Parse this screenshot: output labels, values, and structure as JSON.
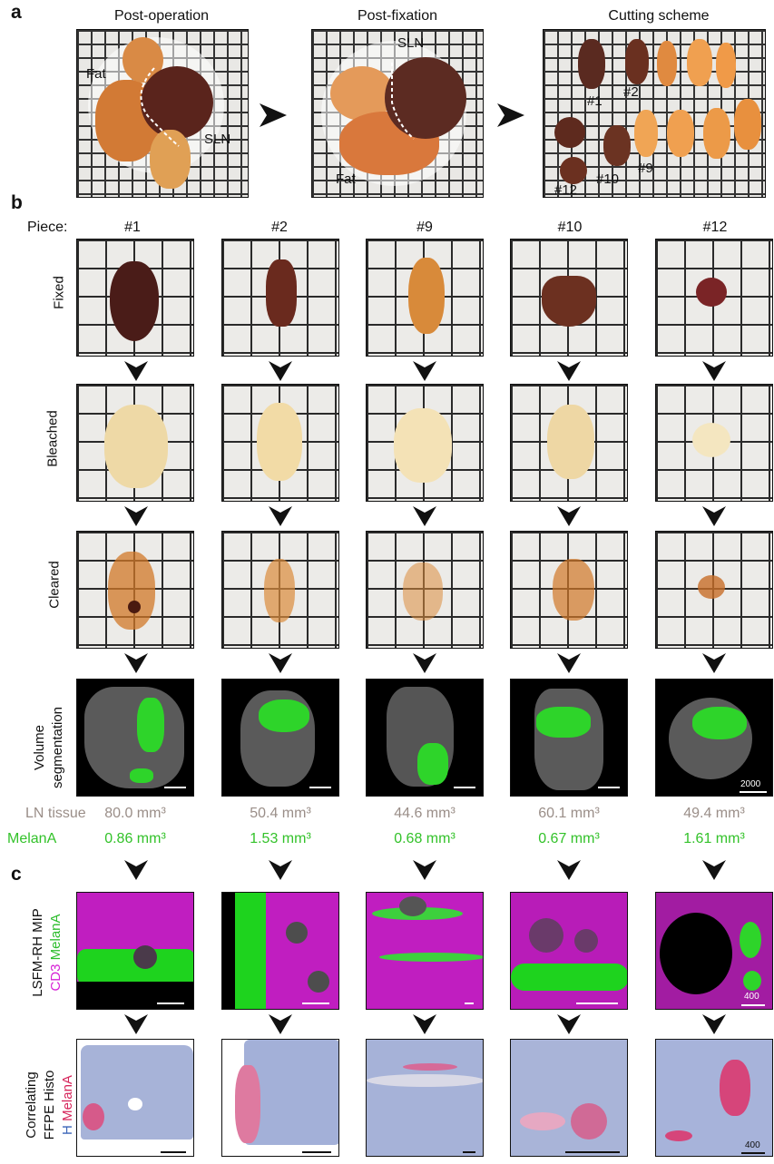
{
  "panels": {
    "a": "a",
    "b": "b",
    "c": "c"
  },
  "panel_a": {
    "titles": [
      "Post-operation",
      "Post-fixation",
      "Cutting scheme"
    ],
    "photo1_labels": {
      "fat": "Fat",
      "sln": "SLN"
    },
    "photo2_labels": {
      "sln": "SLN",
      "fat": "Fat"
    },
    "photo3_labels": [
      "#1",
      "#2",
      "#9",
      "#10",
      "#12"
    ]
  },
  "panel_b": {
    "piece_prefix": "Piece:",
    "pieces": [
      "#1",
      "#2",
      "#9",
      "#10",
      "#12"
    ],
    "row_labels": {
      "fixed": "Fixed",
      "bleached": "Bleached",
      "cleared": "Cleared",
      "segmentation_line1": "Volume",
      "segmentation_line2": "segmentation"
    },
    "segmentation_scale": "2000",
    "ln_label": "LN tissue",
    "melana_label": "MelanA",
    "ln_volumes": [
      "80.0 mm³",
      "50.4 mm³",
      "44.6 mm³",
      "60.1 mm³",
      "49.4 mm³"
    ],
    "melana_volumes": [
      "0.86 mm³",
      "1.53 mm³",
      "0.68 mm³",
      "0.67 mm³",
      "1.61 mm³"
    ]
  },
  "panel_c": {
    "lsfm_label": {
      "line1": "LSFM-RH MIP",
      "cd3": "CD3",
      "melana": "MelanA"
    },
    "histo_label": {
      "line1": "Correlating",
      "line2": "FFPE Histo",
      "h": "H",
      "melana": "MelanA"
    },
    "lsfm_scale": "400",
    "histo_scale": "400"
  },
  "colors": {
    "melana_green": "#33c22a",
    "ln_gray": "#9a8e88",
    "cd3_magenta": "#d61fd6",
    "h_blue": "#3a64b8",
    "melana_pink": "#d6245a"
  }
}
